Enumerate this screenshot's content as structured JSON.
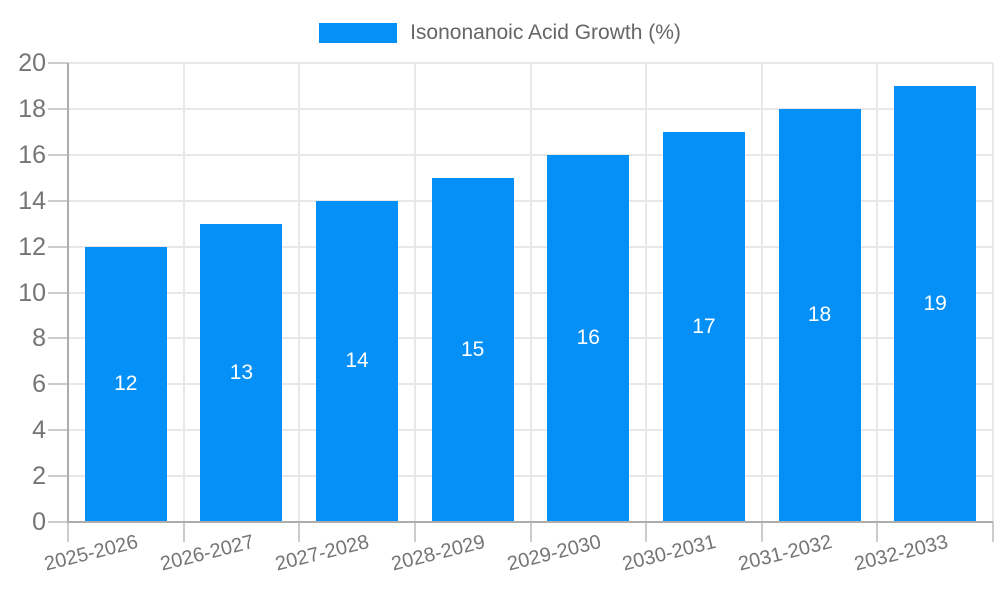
{
  "legend": {
    "label": "Isononanoic Acid Growth (%)"
  },
  "colors": {
    "bar": "#0590f8",
    "legend_text": "#666666",
    "tick_label": "#757575",
    "value_label": "#ffffff",
    "grid_line": "#e8e8e8",
    "tick_mark": "#cccccc",
    "axis_line": "#adadad"
  },
  "chart_data": {
    "type": "bar",
    "title": "",
    "xlabel": "",
    "ylabel": "",
    "categories": [
      "2025-2026",
      "2026-2027",
      "2027-2028",
      "2028-2029",
      "2029-2030",
      "2030-2031",
      "2031-2032",
      "2032-2033"
    ],
    "series": [
      {
        "name": "Isononanoic Acid Growth (%)",
        "values": [
          12,
          13,
          14,
          15,
          16,
          17,
          18,
          19
        ]
      }
    ],
    "ylim": [
      0,
      20
    ],
    "ytick_step": 2,
    "grid": true,
    "legend_position": "top",
    "value_labels_position": "inside-center",
    "x_label_rotation_deg": -14
  }
}
